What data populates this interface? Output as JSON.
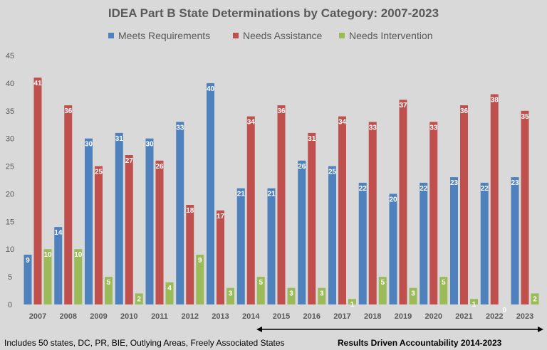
{
  "chart_data": {
    "type": "bar",
    "title": "IDEA Part B State Determinations by Category: 2007-2023",
    "categories": [
      "2007",
      "2008",
      "2009",
      "2010",
      "2011",
      "2012",
      "2013",
      "2014",
      "2015",
      "2016",
      "2017",
      "2018",
      "2019",
      "2020",
      "2021",
      "2022",
      "2023"
    ],
    "series": [
      {
        "name": "Meets Requirements",
        "color": "#4f81bd",
        "values": [
          9,
          14,
          30,
          31,
          30,
          33,
          40,
          21,
          21,
          26,
          25,
          22,
          20,
          22,
          23,
          22,
          23
        ]
      },
      {
        "name": "Needs Assistance",
        "color": "#c0504d",
        "values": [
          41,
          36,
          25,
          27,
          26,
          18,
          17,
          34,
          36,
          31,
          34,
          33,
          37,
          33,
          36,
          38,
          35
        ]
      },
      {
        "name": "Needs Intervention",
        "color": "#9bbb59",
        "values": [
          10,
          10,
          5,
          2,
          4,
          9,
          3,
          5,
          3,
          3,
          1,
          5,
          3,
          5,
          1,
          0,
          2
        ]
      }
    ],
    "ylim": [
      0,
      45
    ],
    "yticks": [
      0,
      5,
      10,
      15,
      20,
      25,
      30,
      35,
      40,
      45
    ],
    "grid": false,
    "legend": "top",
    "data_labels": true,
    "annotations": {
      "footnote": "Includes 50 states, DC, PR, BIE, Outlying Areas, Freely Associated States",
      "range_label": "Results Driven Accountability 2014-2023",
      "range": [
        "2014",
        "2023"
      ]
    }
  }
}
